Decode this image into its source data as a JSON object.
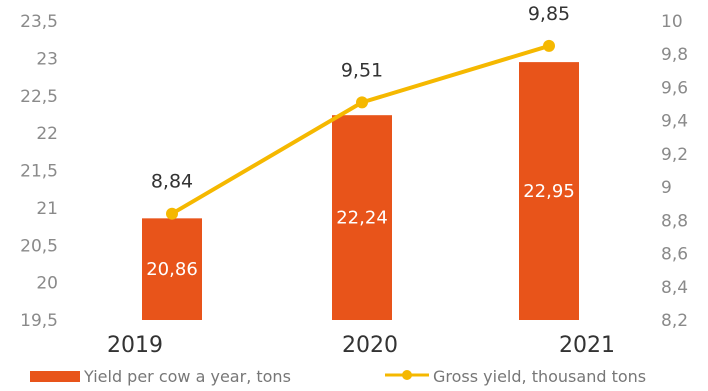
{
  "chart_data": {
    "type": "bar",
    "categories": [
      "2019",
      "2020",
      "2021"
    ],
    "series": [
      {
        "name": "Yield per cow a year, tons",
        "type": "bar",
        "axis": "left",
        "values": [
          20.86,
          22.24,
          22.95
        ],
        "labels": [
          "20,86",
          "22,24",
          "22,95"
        ],
        "color": "#e8541a"
      },
      {
        "name": "Gross yield, thousand tons",
        "type": "line",
        "axis": "right",
        "values": [
          8.84,
          9.51,
          9.85
        ],
        "labels": [
          "8,84",
          "9,51",
          "9,85"
        ],
        "color": "#f5b800"
      }
    ],
    "y_left": {
      "min": 19.5,
      "max": 23.5,
      "ticks": [
        19.5,
        20,
        20.5,
        21,
        21.5,
        22,
        22.5,
        23,
        23.5
      ],
      "tick_labels": [
        "19,5",
        "20",
        "20,5",
        "21",
        "21,5",
        "22",
        "22,5",
        "23",
        "23,5"
      ]
    },
    "y_right": {
      "min": 8.2,
      "max": 10,
      "ticks": [
        8.2,
        8.4,
        8.6,
        8.8,
        9,
        9.2,
        9.4,
        9.6,
        9.8,
        10
      ],
      "tick_labels": [
        "8,2",
        "8,4",
        "8,6",
        "8,8",
        "9",
        "9,2",
        "9,4",
        "9,6",
        "9,8",
        "10"
      ]
    },
    "grid": false,
    "legend": {
      "position": "bottom",
      "entries": [
        "Yield per cow a year, tons",
        "Gross yield, thousand tons"
      ]
    }
  }
}
